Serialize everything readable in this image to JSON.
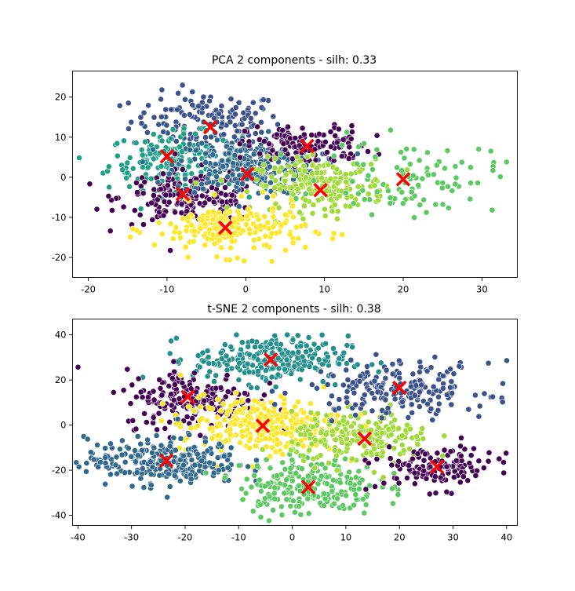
{
  "palette": {
    "c0": "#440154",
    "c1": "#3b528b",
    "c2": "#21908d",
    "c3": "#5dc963",
    "c4": "#a0da39",
    "c5": "#fde725",
    "c6": "#31688e",
    "c7": "#1fa187",
    "centroid": "#ff0000"
  },
  "chart_data": [
    {
      "type": "scatter",
      "title": "PCA 2 components - silh: 0.33",
      "xlim": [
        -22,
        34.5
      ],
      "ylim": [
        -25,
        26.5
      ],
      "xticks": [
        -20,
        -10,
        0,
        10,
        20,
        30
      ],
      "yticks": [
        -20,
        -10,
        0,
        10,
        20
      ],
      "grid": false,
      "clusters": [
        {
          "color": "c1",
          "cx": -5,
          "cy": 14,
          "sx": 4.8,
          "sy": 3.6,
          "n": 150
        },
        {
          "color": "c7",
          "cx": -9,
          "cy": 4,
          "sx": 4.2,
          "sy": 3.5,
          "n": 190
        },
        {
          "color": "c0",
          "cx": -7,
          "cy": -5,
          "sx": 4.5,
          "sy": 3.3,
          "n": 190
        },
        {
          "color": "c6",
          "cx": 0,
          "cy": 3,
          "sx": 4.5,
          "sy": 3.6,
          "n": 260
        },
        {
          "color": "c0",
          "cx": 8,
          "cy": 8,
          "sx": 3.9,
          "sy": 2.4,
          "n": 130
        },
        {
          "color": "c4",
          "cx": 9.5,
          "cy": -2,
          "sx": 4.2,
          "sy": 3.2,
          "n": 220
        },
        {
          "color": "c5",
          "cx": -2,
          "cy": -13,
          "sx": 4.8,
          "sy": 3.2,
          "n": 210
        },
        {
          "color": "c3",
          "cx": 21,
          "cy": 0,
          "sx": 5.5,
          "sy": 4.5,
          "n": 95
        }
      ],
      "centroids": [
        {
          "x": -4.5,
          "y": 12.5
        },
        {
          "x": -10,
          "y": 5.2
        },
        {
          "x": -8,
          "y": -4.2
        },
        {
          "x": 0.2,
          "y": 0.8
        },
        {
          "x": 7.8,
          "y": 7.8
        },
        {
          "x": 9.5,
          "y": -3.2
        },
        {
          "x": -2.6,
          "y": -12.6
        },
        {
          "x": 20,
          "y": -0.5
        }
      ]
    },
    {
      "type": "scatter",
      "title": "t-SNE 2 components - silh: 0.38",
      "xlim": [
        -41,
        42
      ],
      "ylim": [
        -44.5,
        47
      ],
      "xticks": [
        -40,
        -30,
        -20,
        -10,
        0,
        10,
        20,
        30,
        40
      ],
      "yticks": [
        -40,
        -20,
        0,
        20,
        40
      ],
      "grid": false,
      "clusters": [
        {
          "color": "c2",
          "cx": -4,
          "cy": 29,
          "sx": 7.2,
          "sy": 5.2,
          "n": 260
        },
        {
          "color": "c0",
          "cx": -19,
          "cy": 12,
          "sx": 6.2,
          "sy": 6.5,
          "n": 190
        },
        {
          "color": "c5",
          "cx": -6,
          "cy": 0,
          "sx": 7.5,
          "sy": 6.2,
          "n": 300
        },
        {
          "color": "c6",
          "cx": -24,
          "cy": -16,
          "sx": 7.2,
          "sy": 5.2,
          "n": 260
        },
        {
          "color": "c3",
          "cx": 3,
          "cy": -27,
          "sx": 6.5,
          "sy": 6.5,
          "n": 220
        },
        {
          "color": "c4",
          "cx": 13,
          "cy": -6,
          "sx": 6.5,
          "sy": 5.5,
          "n": 220
        },
        {
          "color": "c1",
          "cx": 20,
          "cy": 16,
          "sx": 8.5,
          "sy": 6.0,
          "n": 200
        },
        {
          "color": "c0",
          "cx": 27,
          "cy": -19,
          "sx": 5.5,
          "sy": 4.8,
          "n": 130
        }
      ],
      "centroids": [
        {
          "x": -4,
          "y": 29
        },
        {
          "x": -19.5,
          "y": 12.5
        },
        {
          "x": -5.5,
          "y": -0.3
        },
        {
          "x": -23.5,
          "y": -15.8
        },
        {
          "x": 3,
          "y": -27.5
        },
        {
          "x": 13.5,
          "y": -6
        },
        {
          "x": 20,
          "y": 16.5
        },
        {
          "x": 27,
          "y": -18.5
        }
      ]
    }
  ]
}
